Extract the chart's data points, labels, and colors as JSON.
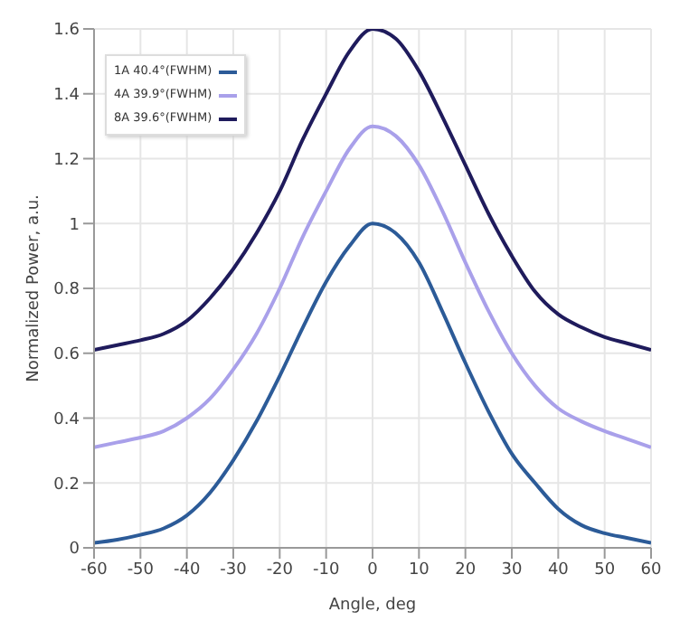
{
  "chart_data": {
    "type": "line",
    "xlabel": "Angle, deg",
    "ylabel": "Normalized Power, a.u.",
    "x": [
      -60,
      -55,
      -50,
      -45,
      -40,
      -35,
      -30,
      -25,
      -20,
      -15,
      -10,
      -5,
      0,
      5,
      10,
      15,
      20,
      25,
      30,
      35,
      40,
      45,
      50,
      55,
      60
    ],
    "series": [
      {
        "name": "1A 40.4°(FWHM)",
        "color": "#2c5b98",
        "values": [
          0.015,
          0.025,
          0.04,
          0.06,
          0.1,
          0.17,
          0.27,
          0.39,
          0.53,
          0.68,
          0.82,
          0.93,
          1.0,
          0.97,
          0.88,
          0.73,
          0.57,
          0.42,
          0.29,
          0.2,
          0.12,
          0.07,
          0.045,
          0.03,
          0.015
        ]
      },
      {
        "name": "4A 39.9°(FWHM)",
        "color": "#a9a0ea",
        "values": [
          0.31,
          0.325,
          0.34,
          0.36,
          0.4,
          0.46,
          0.55,
          0.66,
          0.8,
          0.96,
          1.1,
          1.23,
          1.3,
          1.27,
          1.18,
          1.04,
          0.88,
          0.73,
          0.6,
          0.5,
          0.43,
          0.39,
          0.36,
          0.335,
          0.31
        ]
      },
      {
        "name": "8A 39.6°(FWHM)",
        "color": "#1f1b5c",
        "values": [
          0.61,
          0.625,
          0.64,
          0.66,
          0.7,
          0.77,
          0.86,
          0.97,
          1.1,
          1.26,
          1.4,
          1.53,
          1.6,
          1.57,
          1.47,
          1.33,
          1.18,
          1.03,
          0.9,
          0.79,
          0.72,
          0.68,
          0.65,
          0.63,
          0.61
        ]
      }
    ],
    "xlim": [
      -60,
      60
    ],
    "xticks": [
      -60,
      -50,
      -40,
      -30,
      -20,
      -10,
      0,
      10,
      20,
      30,
      40,
      50,
      60
    ],
    "ylim": [
      0,
      1.6
    ],
    "yticks": [
      0,
      0.2,
      0.4,
      0.6,
      0.8,
      1,
      1.2,
      1.4,
      1.6
    ],
    "grid": true,
    "legend": "top left",
    "marker": "none",
    "line_style": "solid"
  }
}
